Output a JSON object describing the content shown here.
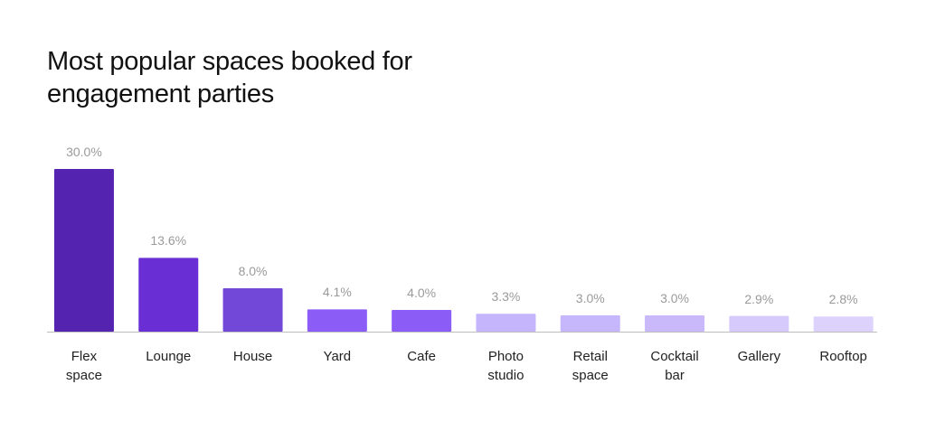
{
  "chart_data": {
    "type": "bar",
    "title": "Most popular spaces booked for engagement parties",
    "categories": [
      "Flex space",
      "Lounge",
      "House",
      "Yard",
      "Cafe",
      "Photo studio",
      "Retail space",
      "Cocktail bar",
      "Gallery",
      "Rooftop"
    ],
    "values": [
      30.0,
      13.6,
      8.0,
      4.1,
      4.0,
      3.3,
      3.0,
      3.0,
      2.9,
      2.8
    ],
    "value_labels": [
      "30.0%",
      "13.6%",
      "8.0%",
      "4.1%",
      "4.0%",
      "3.3%",
      "3.0%",
      "3.0%",
      "2.9%",
      "2.8%"
    ],
    "colors": [
      "#5423b0",
      "#6a2fd4",
      "#7148d8",
      "#8b5cf6",
      "#8b5cf6",
      "#c4b5fd",
      "#c6b6fc",
      "#c9b9fb",
      "#d6c9fc",
      "#ddd2fc"
    ]
  }
}
